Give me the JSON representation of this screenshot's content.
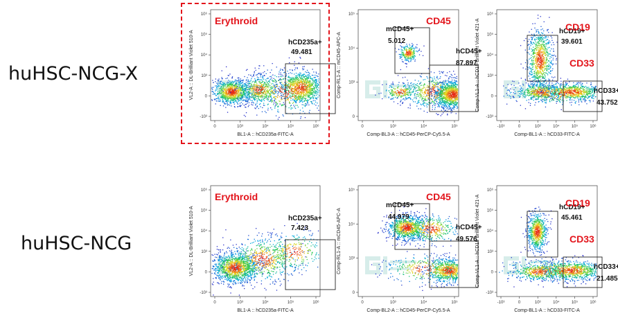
{
  "rows": [
    {
      "label": "huHSC-NCG-X",
      "panels": [
        {
          "title": "Erythroid",
          "y_axis_label": "VL2-A :: DL-Brilliant Violet 510-A",
          "x_axis_label": "BL1-A :: hCD235a-FITC-A",
          "x_ticks": [
            "0",
            "10³",
            "10⁴",
            "10⁵",
            "10⁶"
          ],
          "y_ticks": [
            "10⁶",
            "10⁵",
            "10⁴",
            "10³",
            "0",
            "-10³"
          ],
          "gates": [
            {
              "name": "hCD235a+",
              "value": "49.481"
            }
          ]
        },
        {
          "title": "CD45",
          "y_axis_label": "Comp-RL1-A :: mCD45-APC-A",
          "x_axis_label": "Comp-BL3-A :: hCD45-PerCP-Cy5.5-A",
          "x_ticks": [
            "0",
            "10³",
            "10⁴",
            "10⁵"
          ],
          "y_ticks": [
            "10⁵",
            "10⁴",
            "10³",
            "0"
          ],
          "gates": [
            {
              "name": "mCD45+",
              "value": "5.012"
            },
            {
              "name": "hCD45+",
              "value": "87.897"
            }
          ]
        },
        {
          "title": "CD19",
          "title2": "CD33",
          "y_axis_label": "Comp-VL1-A :: hCD19-Brilliant Violet 421-A",
          "x_axis_label": "Comp-BL1-A :: hCD33-FITC-A",
          "x_ticks": [
            "-10³",
            "0",
            "10³",
            "10⁴",
            "10⁵",
            "10⁶"
          ],
          "y_ticks": [
            "10⁶",
            "10⁵",
            "10⁴",
            "10³",
            "0",
            "-10³"
          ],
          "gates": [
            {
              "name": "hCD19+",
              "value": "39.601"
            },
            {
              "name": "hCD33+",
              "value": "43.752"
            }
          ]
        }
      ]
    },
    {
      "label": "huHSC-NCG",
      "panels": [
        {
          "title": "Erythroid",
          "y_axis_label": "VL2-A :: DL-Brilliant Violet 510-A",
          "x_axis_label": "BL1-A :: hCD235a-FITC-A",
          "x_ticks": [
            "0",
            "10³",
            "10⁴",
            "10⁵",
            "10⁶"
          ],
          "y_ticks": [
            "10⁶",
            "10⁵",
            "10⁴",
            "10³",
            "0",
            "-10³"
          ],
          "gates": [
            {
              "name": "hCD235a+",
              "value": "7.423"
            }
          ]
        },
        {
          "title": "CD45",
          "y_axis_label": "Comp-RL1-A :: mCD45-APC-A",
          "x_axis_label": "Comp-BL2-A :: hCD45-PerCP-Cy5.5-A",
          "x_ticks": [
            "0",
            "10³",
            "10⁴",
            "10⁵"
          ],
          "y_ticks": [
            "10⁵",
            "10⁴",
            "10³",
            "0"
          ],
          "gates": [
            {
              "name": "mCD45+",
              "value": "44.979"
            },
            {
              "name": "hCD45+",
              "value": "49.576"
            }
          ]
        },
        {
          "title": "CD19",
          "title2": "CD33",
          "y_axis_label": "Comp-VL1-A :: hCD19 Brilliant Violet 421-A",
          "x_axis_label": "Comp-BL1-A :: hCD33-FITC-A",
          "x_ticks": [
            "-10³",
            "0",
            "10³",
            "10⁴",
            "10⁵",
            "10⁶"
          ],
          "y_ticks": [
            "10⁶",
            "10⁵",
            "10⁴",
            "10³",
            "0",
            "-10³"
          ],
          "gates": [
            {
              "name": "hCD19+",
              "value": "45.461"
            },
            {
              "name": "hCD33+",
              "value": "21.485"
            }
          ]
        }
      ]
    }
  ],
  "colors": {
    "highlight": "#e3141b",
    "title": "#e3141b"
  }
}
